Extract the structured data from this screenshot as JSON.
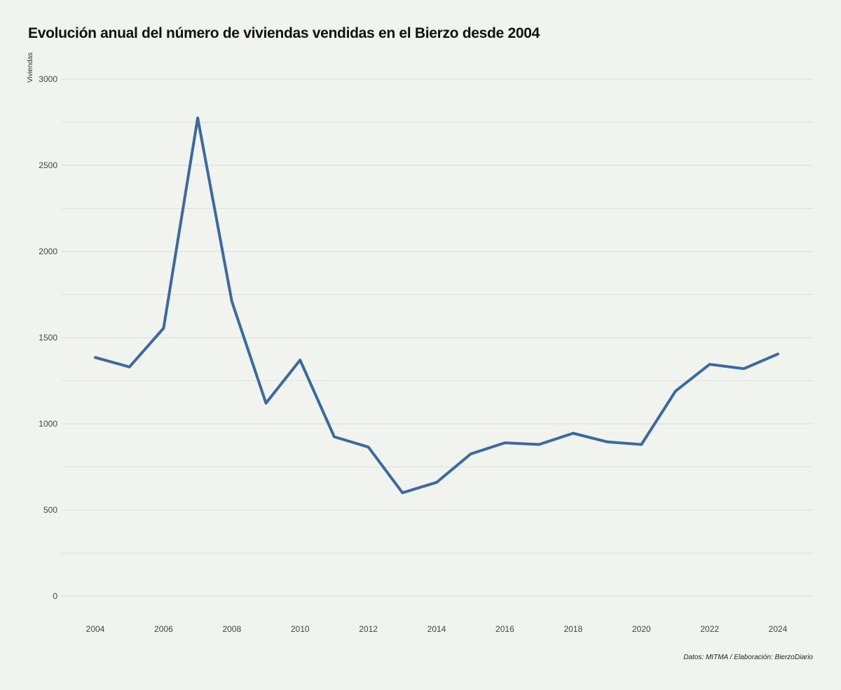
{
  "chart_data": {
    "type": "line",
    "title": "Evolución anual del número de viviendas vendidas en el Bierzo desde 2004",
    "xlabel": "",
    "ylabel": "Viviendas",
    "caption": "Datos: MITMA / Elaboración: BierzoDiario",
    "x": [
      2004,
      2005,
      2006,
      2007,
      2008,
      2009,
      2010,
      2011,
      2012,
      2013,
      2014,
      2015,
      2016,
      2017,
      2018,
      2019,
      2020,
      2021,
      2022,
      2023,
      2024
    ],
    "series": [
      {
        "values": [
          1385,
          1330,
          1555,
          2775,
          1710,
          1120,
          1370,
          925,
          865,
          600,
          660,
          825,
          890,
          880,
          945,
          895,
          880,
          1190,
          1345,
          1320,
          1405
        ]
      }
    ],
    "xticks": [
      "2004",
      "2006",
      "2008",
      "2010",
      "2012",
      "2014",
      "2016",
      "2018",
      "2020",
      "2022",
      "2024"
    ],
    "yticks": [
      "0",
      "500",
      "1000",
      "1500",
      "2000",
      "2500",
      "3000"
    ],
    "xlim": [
      2004,
      2024
    ],
    "ylim": [
      0,
      3000
    ],
    "grid": true,
    "legend": "none",
    "colors": {
      "line": "#3a6aa0",
      "grid": "#d9dbd6",
      "background": "#f1f3ee"
    }
  }
}
